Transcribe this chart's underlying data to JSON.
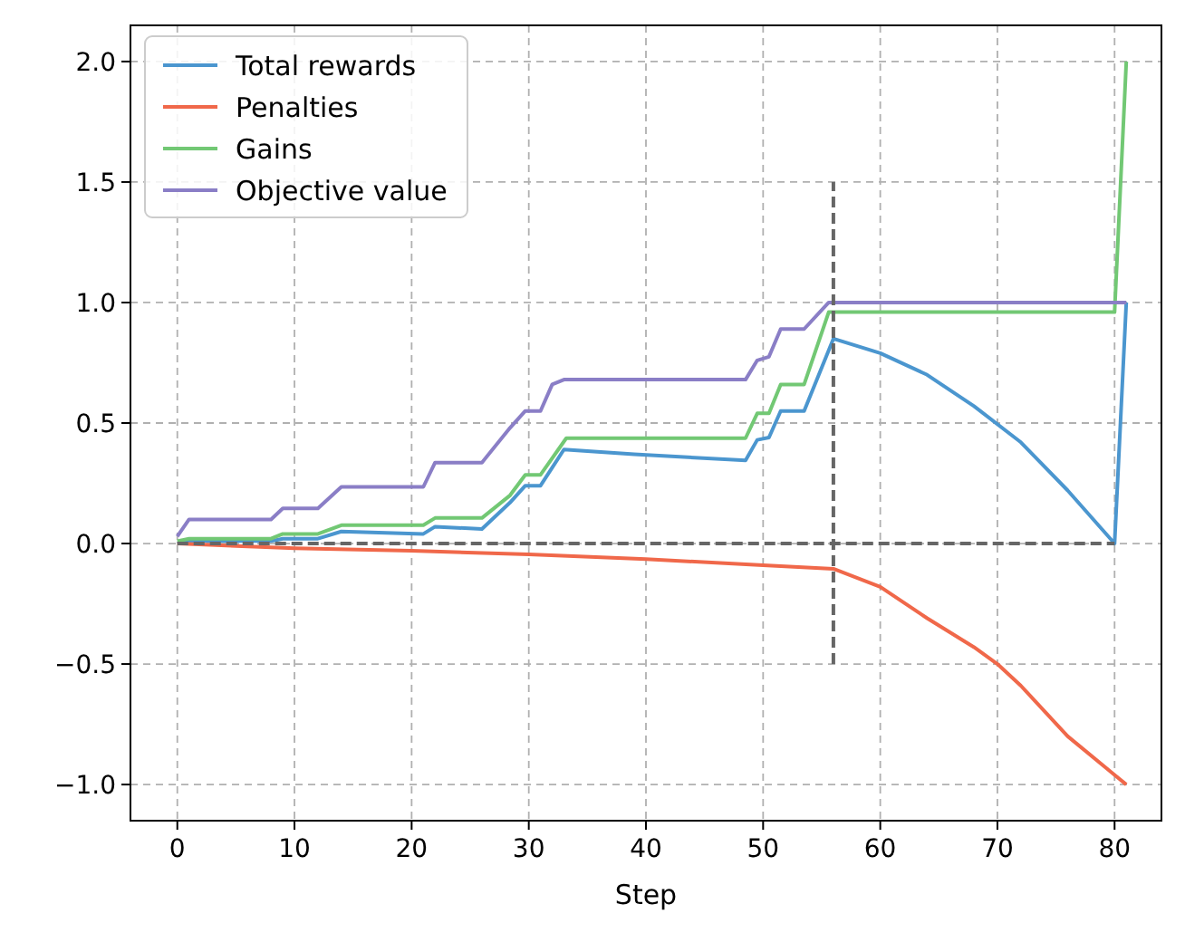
{
  "chart_data": {
    "type": "line",
    "xlabel": "Step",
    "xlim": [
      -4,
      84
    ],
    "ylim": [
      -1.15,
      2.15
    ],
    "xticks": [
      0,
      10,
      20,
      30,
      40,
      50,
      60,
      70,
      80
    ],
    "yticks": [
      {
        "value": -1,
        "label": "−1.0"
      },
      {
        "value": -0.5,
        "label": "−0.5"
      },
      {
        "value": 0,
        "label": "0.0"
      },
      {
        "value": 0.5,
        "label": "0.5"
      },
      {
        "value": 1,
        "label": "1.0"
      },
      {
        "value": 1.5,
        "label": "1.5"
      },
      {
        "value": 2,
        "label": "2.0"
      }
    ],
    "grid": true,
    "legend": "top left",
    "series": [
      {
        "name": "Total rewards",
        "color": "#4b96cf",
        "x": [
          0,
          1,
          8,
          9,
          12,
          14,
          21,
          22,
          26,
          28.4,
          29.7,
          31,
          33,
          39,
          48.5,
          49.5,
          50.5,
          51.5,
          53.5,
          56,
          60,
          64,
          68,
          72,
          76,
          80,
          81
        ],
        "values": [
          0,
          0.01,
          0.01,
          0.02,
          0.02,
          0.05,
          0.04,
          0.07,
          0.06,
          0.17,
          0.24,
          0.24,
          0.39,
          0.37,
          0.345,
          0.43,
          0.44,
          0.55,
          0.55,
          0.85,
          0.79,
          0.7,
          0.57,
          0.42,
          0.22,
          0,
          1
        ]
      },
      {
        "name": "Penalties",
        "color": "#f0684a",
        "x": [
          0,
          10,
          20,
          30,
          40,
          50,
          56,
          60,
          64,
          68,
          70,
          72,
          76,
          80,
          81
        ],
        "values": [
          0,
          -0.02,
          -0.03,
          -0.045,
          -0.065,
          -0.09,
          -0.105,
          -0.18,
          -0.31,
          -0.43,
          -0.5,
          -0.59,
          -0.8,
          -0.96,
          -1
        ]
      },
      {
        "name": "Gains",
        "color": "#72c874",
        "x": [
          0,
          1,
          8,
          9,
          12,
          14,
          21,
          22,
          26,
          28.4,
          29.7,
          31,
          33.2,
          48.5,
          49.5,
          50.5,
          51.5,
          53.5,
          55.6,
          80,
          81
        ],
        "values": [
          0.01,
          0.02,
          0.02,
          0.04,
          0.04,
          0.076,
          0.076,
          0.106,
          0.106,
          0.2,
          0.285,
          0.285,
          0.437,
          0.437,
          0.54,
          0.54,
          0.66,
          0.66,
          0.96,
          0.96,
          2
        ]
      },
      {
        "name": "Objective value",
        "color": "#8a7ec6",
        "x": [
          0,
          1,
          8,
          9,
          12,
          14,
          21,
          22,
          26,
          28.4,
          29.7,
          31,
          32,
          33,
          48.5,
          49.5,
          50.5,
          51.5,
          53.5,
          55.6,
          81
        ],
        "values": [
          0.03,
          0.1,
          0.1,
          0.146,
          0.146,
          0.235,
          0.235,
          0.336,
          0.336,
          0.48,
          0.55,
          0.55,
          0.66,
          0.68,
          0.68,
          0.76,
          0.775,
          0.89,
          0.89,
          1,
          1
        ]
      },
      {
        "color": "#666666",
        "line_style": "dashed",
        "x": [
          0,
          80
        ],
        "values": [
          0,
          0
        ]
      },
      {
        "color": "#666666",
        "line_style": "dashed",
        "x": [
          56,
          56
        ],
        "values": [
          -0.5,
          1.5
        ]
      }
    ]
  }
}
